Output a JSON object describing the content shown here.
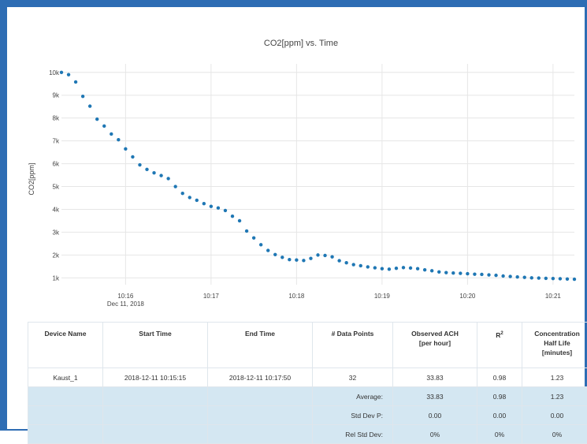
{
  "chart_data": {
    "type": "scatter",
    "title": "CO2[ppm] vs. Time",
    "xlabel": "",
    "ylabel": "CO2[ppm]",
    "x_ticks": [
      "10:16",
      "10:17",
      "10:18",
      "10:19",
      "10:20",
      "10:21"
    ],
    "x_date_label": "Dec 11, 2018",
    "y_ticks": [
      "1k",
      "2k",
      "3k",
      "4k",
      "5k",
      "6k",
      "7k",
      "8k",
      "9k",
      "10k"
    ],
    "ylim": [
      700,
      10200
    ],
    "xlim": [
      "10:15:15",
      "10:21:15"
    ],
    "grid": true,
    "marker_color": "#1f77b4",
    "series": [
      {
        "x": [
          "10:15:15",
          "10:15:20",
          "10:15:25",
          "10:15:30",
          "10:15:35",
          "10:15:40",
          "10:15:45",
          "10:15:50",
          "10:15:55",
          "10:16:00",
          "10:16:05",
          "10:16:10",
          "10:16:15",
          "10:16:20",
          "10:16:25",
          "10:16:30",
          "10:16:35",
          "10:16:40",
          "10:16:45",
          "10:16:50",
          "10:16:55",
          "10:17:00",
          "10:17:05",
          "10:17:10",
          "10:17:15",
          "10:17:20",
          "10:17:25",
          "10:17:30",
          "10:17:35",
          "10:17:40",
          "10:17:45",
          "10:17:50",
          "10:17:55",
          "10:18:00",
          "10:18:05",
          "10:18:10",
          "10:18:15",
          "10:18:20",
          "10:18:25",
          "10:18:30",
          "10:18:35",
          "10:18:40",
          "10:18:45",
          "10:18:50",
          "10:18:55",
          "10:19:00",
          "10:19:05",
          "10:19:10",
          "10:19:15",
          "10:19:20",
          "10:19:25",
          "10:19:30",
          "10:19:35",
          "10:19:40",
          "10:19:45",
          "10:19:50",
          "10:19:55",
          "10:20:00",
          "10:20:05",
          "10:20:10",
          "10:20:15",
          "10:20:20",
          "10:20:25",
          "10:20:30",
          "10:20:35",
          "10:20:40",
          "10:20:45",
          "10:20:50",
          "10:20:55",
          "10:21:00",
          "10:21:05",
          "10:21:10",
          "10:21:15"
        ],
        "y": [
          10000,
          9900,
          9580,
          8950,
          8520,
          7950,
          7650,
          7300,
          7050,
          6650,
          6300,
          5950,
          5750,
          5600,
          5480,
          5350,
          5000,
          4700,
          4520,
          4400,
          4250,
          4130,
          4060,
          3950,
          3700,
          3500,
          3050,
          2750,
          2450,
          2200,
          2020,
          1900,
          1800,
          1780,
          1760,
          1850,
          2000,
          1980,
          1920,
          1750,
          1660,
          1580,
          1530,
          1480,
          1440,
          1400,
          1380,
          1420,
          1450,
          1430,
          1400,
          1350,
          1310,
          1260,
          1230,
          1210,
          1200,
          1180,
          1160,
          1150,
          1130,
          1110,
          1080,
          1060,
          1040,
          1020,
          1000,
          990,
          980,
          970,
          960,
          950,
          940
        ]
      }
    ]
  },
  "table": {
    "headers": {
      "device_name": "Device Name",
      "start_time": "Start Time",
      "end_time": "End Time",
      "data_points": "# Data Points",
      "ach_line1": "Observed ACH",
      "ach_line2": "[per hour]",
      "r2_base": "R",
      "r2_sup": "2",
      "half_line1": "Concentration",
      "half_line2": "Half Life",
      "half_line3": "[minutes]"
    },
    "rows": [
      {
        "device_name": "Kaust_1",
        "start_time": "2018-12-11 10:15:15",
        "end_time": "2018-12-11 10:17:50",
        "data_points": "32",
        "ach": "33.83",
        "r2": "0.98",
        "half_life": "1.23"
      }
    ],
    "summary": [
      {
        "label": "Average:",
        "ach": "33.83",
        "r2": "0.98",
        "half_life": "1.23"
      },
      {
        "label": "Std Dev P:",
        "ach": "0.00",
        "r2": "0.00",
        "half_life": "0.00"
      },
      {
        "label": "Rel Std Dev:",
        "ach": "0%",
        "r2": "0%",
        "half_life": "0%"
      }
    ]
  }
}
